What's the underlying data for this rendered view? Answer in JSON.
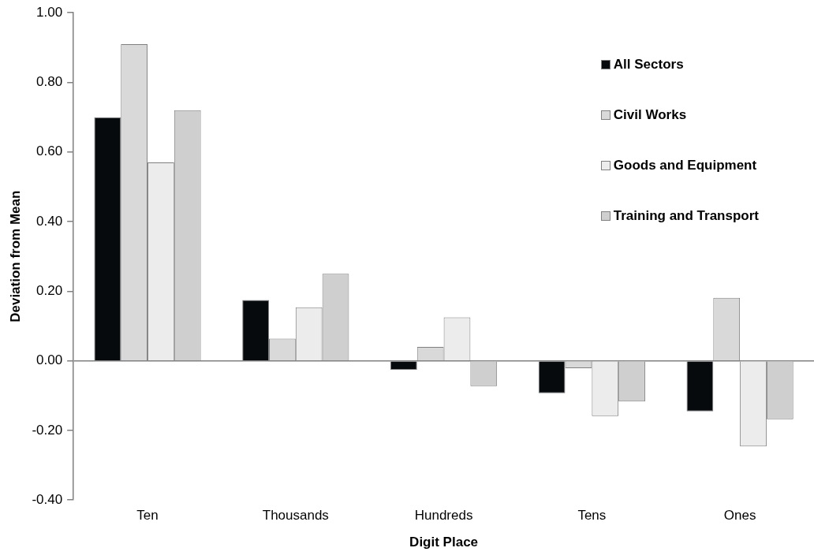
{
  "chart_data": {
    "type": "bar",
    "xlabel": "Digit Place",
    "ylabel": "Deviation from Mean",
    "categories": [
      "Ten",
      "Thousands",
      "Hundreds",
      "Tens",
      "Ones"
    ],
    "series": [
      {
        "name": "All Sectors",
        "color": "#060a0d",
        "values": [
          0.7,
          0.175,
          -0.026,
          -0.093,
          -0.145
        ]
      },
      {
        "name": "Civil Works",
        "color": "#d9d9d9",
        "values": [
          0.91,
          0.064,
          0.04,
          -0.021,
          0.181
        ]
      },
      {
        "name": "Goods and Equipment",
        "color": "#ececec",
        "values": [
          0.57,
          0.154,
          0.125,
          -0.159,
          -0.246
        ]
      },
      {
        "name": "Training and Transport",
        "color": "#cfcfcf",
        "values": [
          0.72,
          0.25,
          -0.073,
          -0.117,
          -0.168
        ]
      }
    ],
    "ylim": [
      -0.4,
      1.0
    ],
    "yticks": [
      {
        "value": -0.4,
        "label": "-0.40"
      },
      {
        "value": -0.2,
        "label": "-0.20"
      },
      {
        "value": 0,
        "label": "0.00"
      },
      {
        "value": 0.2,
        "label": "0.20"
      },
      {
        "value": 0.4,
        "label": "0.40"
      },
      {
        "value": 0.6,
        "label": "0.60"
      },
      {
        "value": 0.8,
        "label": "0.80"
      },
      {
        "value": 1.0,
        "label": "1.00"
      }
    ],
    "legend": "top right"
  }
}
